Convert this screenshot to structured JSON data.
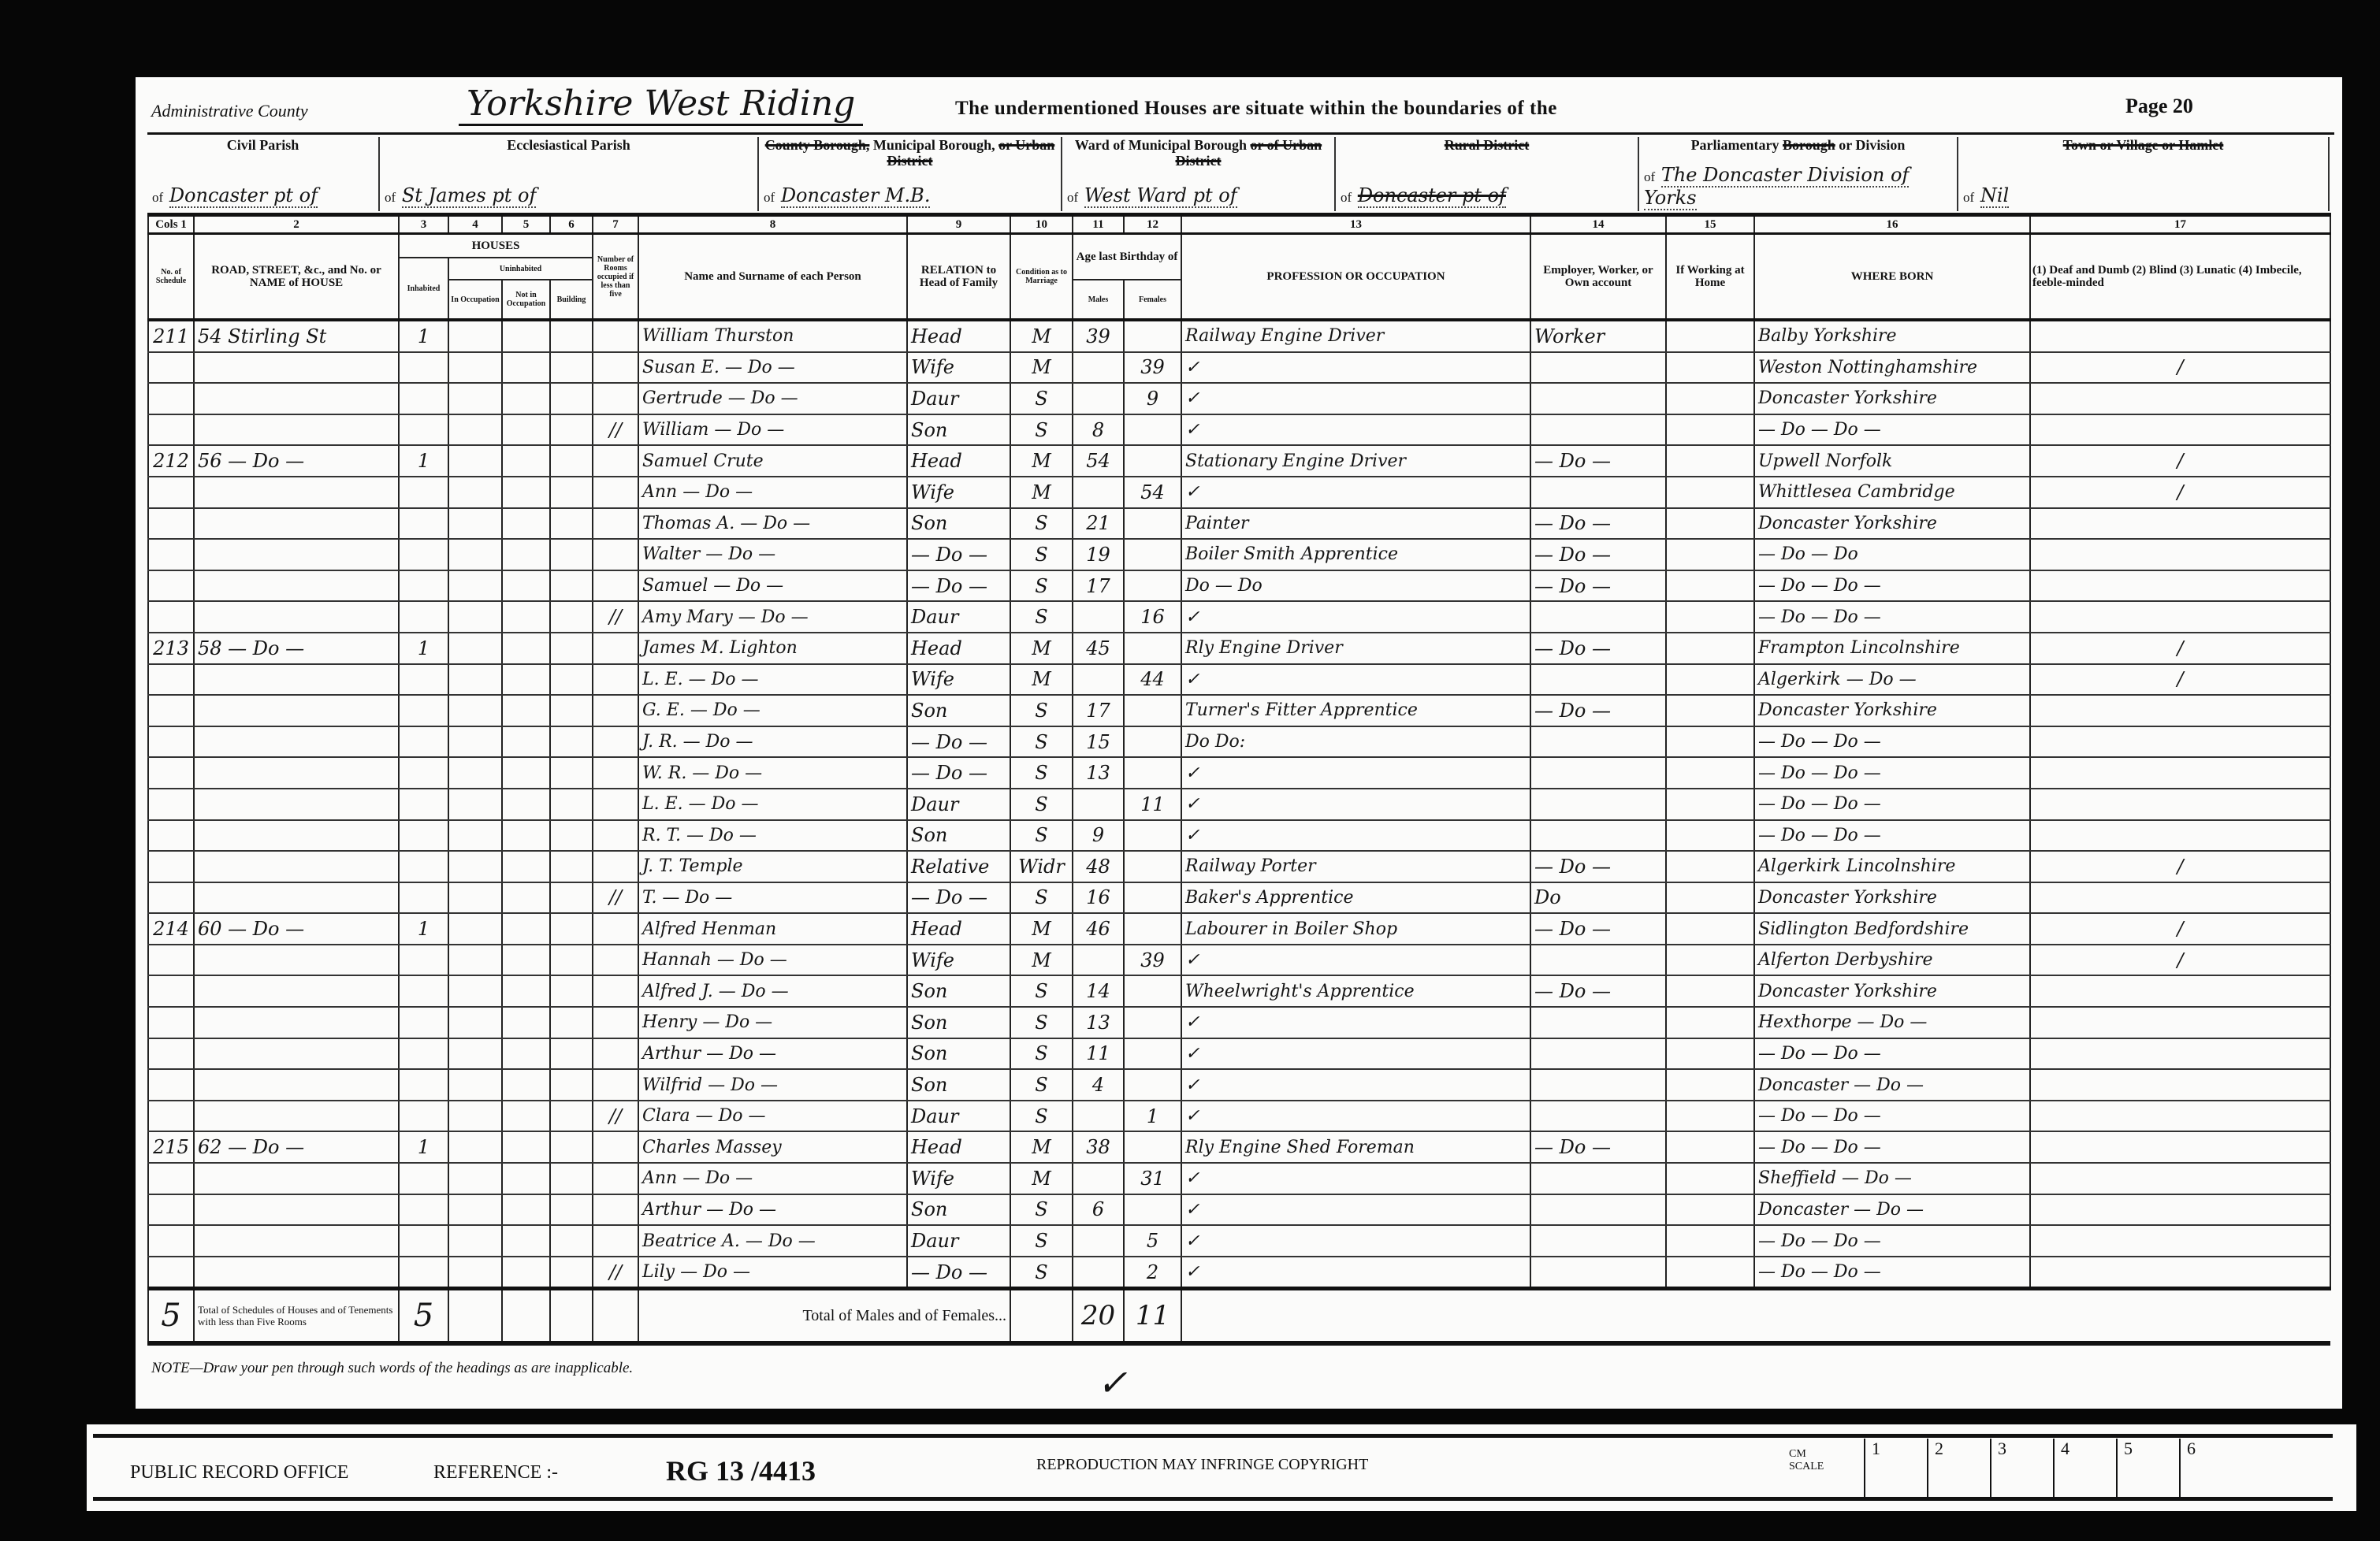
{
  "header": {
    "admin_label": "Administrative County",
    "admin_value": "Yorkshire West Riding",
    "boundary_text": "The undermentioned Houses are situate within the boundaries of the",
    "page": "Page 20",
    "cells": [
      {
        "label": [
          {
            "t": "Civil Parish",
            "s": false
          }
        ],
        "value": "Doncaster pt of",
        "value_struck": false
      },
      {
        "label": [
          {
            "t": "Ecclesiastical Parish",
            "s": false
          }
        ],
        "value": "St James pt of",
        "value_struck": false
      },
      {
        "label": [
          {
            "t": "County Borough,",
            "s": true
          },
          {
            "t": " Municipal Borough, ",
            "s": false
          },
          {
            "t": "or Urban District",
            "s": true
          }
        ],
        "value": "Doncaster M.B.",
        "value_struck": false
      },
      {
        "label": [
          {
            "t": "Ward of Municipal Borough ",
            "s": false
          },
          {
            "t": "or of Urban District",
            "s": true
          }
        ],
        "value": "West Ward pt of",
        "value_struck": false
      },
      {
        "label": [
          {
            "t": "Rural District",
            "s": true
          }
        ],
        "value": "Doncaster pt of",
        "value_struck": true
      },
      {
        "label": [
          {
            "t": "Parliamentary ",
            "s": false
          },
          {
            "t": "Borough",
            "s": true
          },
          {
            "t": " or Division",
            "s": false
          }
        ],
        "value": "The Doncaster Division of Yorks",
        "value_struck": false
      },
      {
        "label": [
          {
            "t": "Town or Village or Hamlet",
            "s": true
          }
        ],
        "value": "Nil",
        "value_struck": false
      }
    ],
    "of": "of"
  },
  "columns": {
    "numbers": [
      "Cols 1",
      "2",
      "3",
      "4",
      "5",
      "6",
      "7",
      "8",
      "9",
      "10",
      "11",
      "12",
      "13",
      "14",
      "15",
      "16",
      "17"
    ],
    "headings": [
      "No. of Schedule",
      "ROAD, STREET, &c., and No. or NAME of HOUSE",
      "Inhabited",
      "In Occupation",
      "Not in Occupation",
      "Building",
      "Number of Rooms occupied if less than five",
      "Name and Surname of each Person",
      "RELATION to Head of Family",
      "Condition as to Marriage",
      "Males",
      "Females",
      "PROFESSION OR OCCUPATION",
      "Employer, Worker, or Own account",
      "If Working at Home",
      "WHERE BORN",
      "(1) Deaf and Dumb (2) Blind (3) Lunatic (4) Imbecile, feeble-minded"
    ],
    "houses_group": "HOUSES",
    "uninhabited_group": "Uninhabited",
    "age_group": "Age last Birthday of"
  },
  "rows": [
    [
      "211",
      "54 Stirling St",
      "1",
      "",
      "William Thurston",
      "Head",
      "M",
      "39",
      "",
      "Railway Engine Driver",
      "Worker",
      "Balby Yorkshire",
      ""
    ],
    [
      "",
      "",
      "",
      "",
      "Susan E. — Do —",
      "Wife",
      "M",
      "",
      "39",
      "✓",
      "",
      "Weston Nottinghamshire",
      "/"
    ],
    [
      "",
      "",
      "",
      "",
      "Gertrude — Do —",
      "Daur",
      "S",
      "",
      "9",
      "✓",
      "",
      "Doncaster Yorkshire",
      ""
    ],
    [
      "",
      "",
      "",
      "//",
      "William — Do —",
      "Son",
      "S",
      "8",
      "",
      "✓",
      "",
      "— Do — Do —",
      ""
    ],
    [
      "212",
      "56 — Do —",
      "1",
      "",
      "Samuel Crute",
      "Head",
      "M",
      "54",
      "",
      "Stationary Engine Driver",
      "— Do —",
      "Upwell Norfolk",
      "/"
    ],
    [
      "",
      "",
      "",
      "",
      "Ann — Do —",
      "Wife",
      "M",
      "",
      "54",
      "✓",
      "",
      "Whittlesea Cambridge",
      "/"
    ],
    [
      "",
      "",
      "",
      "",
      "Thomas A. — Do —",
      "Son",
      "S",
      "21",
      "",
      "Painter",
      "— Do —",
      "Doncaster Yorkshire",
      ""
    ],
    [
      "",
      "",
      "",
      "",
      "Walter — Do —",
      "— Do —",
      "S",
      "19",
      "",
      "Boiler Smith Apprentice",
      "— Do —",
      "— Do — Do",
      ""
    ],
    [
      "",
      "",
      "",
      "",
      "Samuel — Do —",
      "— Do —",
      "S",
      "17",
      "",
      "Do — Do",
      "— Do —",
      "— Do — Do —",
      ""
    ],
    [
      "",
      "",
      "",
      "//",
      "Amy Mary — Do —",
      "Daur",
      "S",
      "",
      "16",
      "✓",
      "",
      "— Do — Do —",
      ""
    ],
    [
      "213",
      "58 — Do —",
      "1",
      "",
      "James M. Lighton",
      "Head",
      "M",
      "45",
      "",
      "Rly Engine Driver",
      "— Do —",
      "Frampton Lincolnshire",
      "/"
    ],
    [
      "",
      "",
      "",
      "",
      "L. E. — Do —",
      "Wife",
      "M",
      "",
      "44",
      "✓",
      "",
      "Algerkirk — Do —",
      "/"
    ],
    [
      "",
      "",
      "",
      "",
      "G. E. — Do —",
      "Son",
      "S",
      "17",
      "",
      "Turner's Fitter Apprentice",
      "— Do —",
      "Doncaster Yorkshire",
      ""
    ],
    [
      "",
      "",
      "",
      "",
      "J. R. — Do —",
      "— Do —",
      "S",
      "15",
      "",
      "Do Do:",
      "",
      "— Do — Do —",
      ""
    ],
    [
      "",
      "",
      "",
      "",
      "W. R. — Do —",
      "— Do —",
      "S",
      "13",
      "",
      "✓",
      "",
      "— Do — Do —",
      ""
    ],
    [
      "",
      "",
      "",
      "",
      "L. E. — Do —",
      "Daur",
      "S",
      "",
      "11",
      "✓",
      "",
      "— Do — Do —",
      ""
    ],
    [
      "",
      "",
      "",
      "",
      "R. T. — Do —",
      "Son",
      "S",
      "9",
      "",
      "✓",
      "",
      "— Do — Do —",
      ""
    ],
    [
      "",
      "",
      "",
      "",
      "J. T. Temple",
      "Relative",
      "Widr",
      "48",
      "",
      "Railway Porter",
      "— Do —",
      "Algerkirk Lincolnshire",
      "/"
    ],
    [
      "",
      "",
      "",
      "//",
      "T. — Do —",
      "— Do —",
      "S",
      "16",
      "",
      "Baker's Apprentice",
      "Do",
      "Doncaster Yorkshire",
      ""
    ],
    [
      "214",
      "60 — Do —",
      "1",
      "",
      "Alfred Henman",
      "Head",
      "M",
      "46",
      "",
      "Labourer in Boiler Shop",
      "— Do —",
      "Sidlington Bedfordshire",
      "/"
    ],
    [
      "",
      "",
      "",
      "",
      "Hannah — Do —",
      "Wife",
      "M",
      "",
      "39",
      "✓",
      "",
      "Alferton Derbyshire",
      "/"
    ],
    [
      "",
      "",
      "",
      "",
      "Alfred J. — Do —",
      "Son",
      "S",
      "14",
      "",
      "Wheelwright's Apprentice",
      "— Do —",
      "Doncaster Yorkshire",
      ""
    ],
    [
      "",
      "",
      "",
      "",
      "Henry — Do —",
      "Son",
      "S",
      "13",
      "",
      "✓",
      "",
      "Hexthorpe — Do —",
      ""
    ],
    [
      "",
      "",
      "",
      "",
      "Arthur — Do —",
      "Son",
      "S",
      "11",
      "",
      "✓",
      "",
      "— Do — Do —",
      ""
    ],
    [
      "",
      "",
      "",
      "",
      "Wilfrid — Do —",
      "Son",
      "S",
      "4",
      "",
      "✓",
      "",
      "Doncaster — Do —",
      ""
    ],
    [
      "",
      "",
      "",
      "//",
      "Clara — Do —",
      "Daur",
      "S",
      "",
      "1",
      "✓",
      "",
      "— Do — Do —",
      ""
    ],
    [
      "215",
      "62 — Do —",
      "1",
      "",
      "Charles Massey",
      "Head",
      "M",
      "38",
      "",
      "Rly Engine Shed Foreman",
      "— Do —",
      "— Do — Do —",
      ""
    ],
    [
      "",
      "",
      "",
      "",
      "Ann — Do —",
      "Wife",
      "M",
      "",
      "31",
      "✓",
      "",
      "Sheffield — Do —",
      ""
    ],
    [
      "",
      "",
      "",
      "",
      "Arthur — Do —",
      "Son",
      "S",
      "6",
      "",
      "✓",
      "",
      "Doncaster — Do —",
      ""
    ],
    [
      "",
      "",
      "",
      "",
      "Beatrice A. — Do —",
      "Daur",
      "S",
      "",
      "5",
      "✓",
      "",
      "— Do — Do —",
      ""
    ],
    [
      "",
      "",
      "",
      "//",
      "Lily — Do —",
      "— Do —",
      "S",
      "",
      "2",
      "✓",
      "",
      "— Do — Do —",
      ""
    ]
  ],
  "totals": {
    "schedules": "5",
    "schedules_label": "Total of Schedules of Houses and of Tenements with less than Five Rooms",
    "houses": "5",
    "mf_label": "Total of Males and of Females...",
    "males": "20",
    "females": "11"
  },
  "note": "NOTE—Draw your pen through such words of the headings as are inapplicable.",
  "check_mark": "✓",
  "footer": {
    "office": "PUBLIC RECORD OFFICE",
    "reference_label": "REFERENCE :-",
    "reference": "RG 13 /4413",
    "copyright": "REPRODUCTION MAY INFRINGE COPYRIGHT",
    "scale_label": "CM SCALE",
    "scale": [
      "1",
      "2",
      "3",
      "4",
      "5",
      "6"
    ]
  }
}
